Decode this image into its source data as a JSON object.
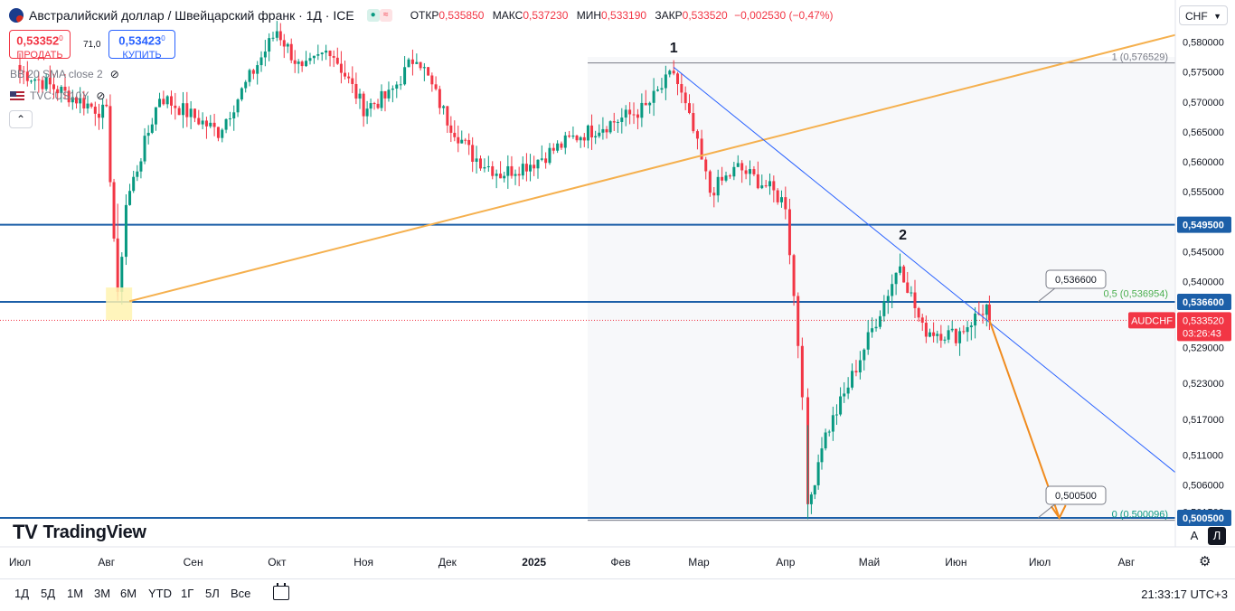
{
  "header": {
    "title": "Австралийский доллар / Швейцарский франк · 1Д · ICE",
    "ohlc": [
      {
        "label": "ОТКР",
        "value": "0,535850"
      },
      {
        "label": "МАКС",
        "value": "0,537230"
      },
      {
        "label": "МИН",
        "value": "0,533190"
      },
      {
        "label": "ЗАКР",
        "value": "0,533520"
      }
    ],
    "change": "−0,002530 (−0,47%)"
  },
  "trade": {
    "sell_price": "0,53352",
    "sell_sup": "0",
    "sell_label": "ПРОДАТЬ",
    "spread": "71,0",
    "buy_price": "0,53423",
    "buy_sup": "0",
    "buy_label": "КУПИТЬ"
  },
  "legend": {
    "bb": "BB 20 SMA close 2",
    "tvc": "TVC:US10Y"
  },
  "currency": "CHF",
  "timeframes": [
    "1Д",
    "5Д",
    "1М",
    "3М",
    "6М",
    "YTD",
    "1Г",
    "5Л",
    "Все"
  ],
  "clock": "21:33:17 UTC+3",
  "logo": "TradingView",
  "buttons": {
    "auto": "A",
    "log": "Л"
  },
  "colors": {
    "up": "#089981",
    "down": "#f23645",
    "level": "#1c5fa8",
    "trend": "#f5b04e",
    "down_trend": "#2962ff",
    "arrow": "#f08b1e"
  },
  "chart_data": {
    "type": "candlestick",
    "symbol": "AUDCHF",
    "x_ticks": [
      "Июл",
      "Авг",
      "Сен",
      "Окт",
      "Ноя",
      "Дек",
      "2025",
      "Фев",
      "Мар",
      "Апр",
      "Май",
      "Июн",
      "Июл",
      "Авг"
    ],
    "y_ticks": [
      "0,580000",
      "0,575000",
      "0,570000",
      "0,565000",
      "0,560000",
      "0,555000",
      "0,549500",
      "0,545000",
      "0,540000",
      "0,536600",
      "0,529000",
      "0,523000",
      "0,517000",
      "0,511000",
      "0,506000",
      "0,501500",
      "0,500500"
    ],
    "ylim": [
      0.4985,
      0.5823
    ],
    "last_price": "0,533520",
    "countdown": "03:26:43",
    "support_levels": [
      {
        "price": 0.5495,
        "label": "0,549500"
      },
      {
        "price": 0.5366,
        "label": "0,536600"
      },
      {
        "price": 0.5005,
        "label": "0,500500"
      }
    ],
    "fib_labels": [
      {
        "text": "1 (0,576529)",
        "price": 0.576529
      },
      {
        "text": "0,5 (0,536954)",
        "price": 0.536954
      },
      {
        "text": "0 (0,500096)",
        "price": 0.500096
      }
    ],
    "callouts": [
      {
        "text": "0,536600",
        "price": 0.5366
      },
      {
        "text": "0,500500",
        "price": 0.5005
      }
    ],
    "wave_labels": [
      {
        "text": "1",
        "date": "2025-02-20",
        "price": 0.5765
      },
      {
        "text": "2",
        "date": "2025-05-13",
        "price": 0.5452
      }
    ],
    "anchors": [
      {
        "date": "2024-07-01",
        "price": 0.5752
      },
      {
        "date": "2024-08-01",
        "price": 0.568
      },
      {
        "date": "2024-08-05",
        "price": 0.537
      },
      {
        "date": "2024-08-08",
        "price": 0.553
      },
      {
        "date": "2024-08-20",
        "price": 0.571
      },
      {
        "date": "2024-09-10",
        "price": 0.565
      },
      {
        "date": "2024-10-01",
        "price": 0.582
      },
      {
        "date": "2024-10-10",
        "price": 0.575
      },
      {
        "date": "2024-10-20",
        "price": 0.579
      },
      {
        "date": "2024-11-01",
        "price": 0.569
      },
      {
        "date": "2024-11-10",
        "price": 0.571
      },
      {
        "date": "2024-11-20",
        "price": 0.578
      },
      {
        "date": "2024-12-01",
        "price": 0.567
      },
      {
        "date": "2024-12-10",
        "price": 0.561
      },
      {
        "date": "2024-12-20",
        "price": 0.558
      },
      {
        "date": "2025-01-01",
        "price": 0.56
      },
      {
        "date": "2025-01-15",
        "price": 0.564
      },
      {
        "date": "2025-01-31",
        "price": 0.567
      },
      {
        "date": "2025-02-10",
        "price": 0.569
      },
      {
        "date": "2025-02-20",
        "price": 0.575
      },
      {
        "date": "2025-02-27",
        "price": 0.565
      },
      {
        "date": "2025-03-05",
        "price": 0.555
      },
      {
        "date": "2025-03-15",
        "price": 0.559
      },
      {
        "date": "2025-03-25",
        "price": 0.556
      },
      {
        "date": "2025-04-01",
        "price": 0.553
      },
      {
        "date": "2025-04-07",
        "price": 0.522
      },
      {
        "date": "2025-04-09",
        "price": 0.5015
      },
      {
        "date": "2025-04-14",
        "price": 0.513
      },
      {
        "date": "2025-04-22",
        "price": 0.521
      },
      {
        "date": "2025-05-02",
        "price": 0.532
      },
      {
        "date": "2025-05-12",
        "price": 0.543
      },
      {
        "date": "2025-05-20",
        "price": 0.532
      },
      {
        "date": "2025-06-01",
        "price": 0.531
      },
      {
        "date": "2025-06-12",
        "price": 0.5358
      },
      {
        "date": "2025-06-13",
        "price": 0.5335
      }
    ]
  }
}
